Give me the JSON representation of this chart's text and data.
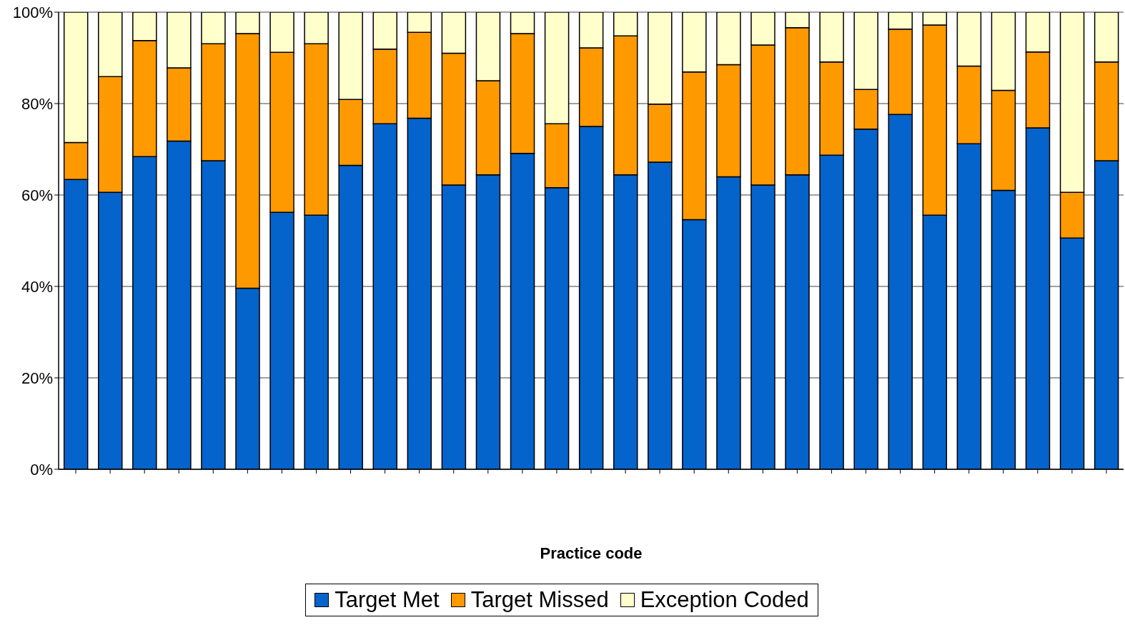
{
  "chart_data": {
    "type": "bar",
    "stacked": true,
    "xlabel": "Practice code",
    "categories": [
      null,
      null,
      null,
      null,
      null,
      null,
      null,
      null,
      null,
      null,
      null,
      null,
      null,
      null,
      null,
      null,
      null,
      null,
      null,
      null,
      null,
      null,
      null,
      null,
      null,
      null,
      null,
      null,
      null,
      null,
      null
    ],
    "series": [
      {
        "name": "Target Met",
        "color": "#0563cc",
        "values": [
          63.4,
          60.6,
          68.4,
          71.8,
          67.5,
          39.6,
          56.2,
          55.6,
          66.5,
          75.6,
          76.8,
          62.2,
          64.4,
          69.1,
          61.6,
          75.0,
          64.4,
          67.2,
          54.6,
          64.0,
          62.2,
          64.4,
          68.7,
          74.4,
          77.6,
          55.6,
          71.2,
          61.0,
          74.7,
          50.6,
          67.5
        ]
      },
      {
        "name": "Target Missed",
        "color": "#ff9900",
        "values": [
          8.1,
          25.3,
          25.4,
          16.0,
          25.6,
          55.7,
          35.0,
          37.5,
          14.4,
          16.3,
          18.8,
          28.8,
          20.6,
          26.2,
          14.0,
          17.2,
          30.4,
          12.7,
          32.3,
          24.5,
          30.6,
          32.2,
          20.4,
          8.7,
          18.7,
          41.6,
          17.0,
          21.9,
          16.6,
          10.0,
          21.6
        ]
      },
      {
        "name": "Exception Coded",
        "color": "#ffffcc",
        "values": [
          28.5,
          14.1,
          6.2,
          12.2,
          6.9,
          4.7,
          8.8,
          6.9,
          19.1,
          8.1,
          4.4,
          9.0,
          15.0,
          4.7,
          24.4,
          7.8,
          5.2,
          20.1,
          13.1,
          11.5,
          7.2,
          3.4,
          10.9,
          16.9,
          3.7,
          2.8,
          11.8,
          17.1,
          8.7,
          39.4,
          10.9
        ]
      }
    ],
    "ylim": [
      0,
      100
    ],
    "yticks": [
      {
        "value": 0,
        "label": "0%"
      },
      {
        "value": 20,
        "label": "20%"
      },
      {
        "value": 40,
        "label": "40%"
      },
      {
        "value": 60,
        "label": "60%"
      },
      {
        "value": 80,
        "label": "80%"
      },
      {
        "value": 100,
        "label": "100%"
      }
    ],
    "grid": "y",
    "legend": "bottom"
  }
}
